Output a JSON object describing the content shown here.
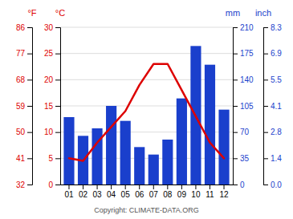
{
  "chart_data": {
    "type": "bar",
    "categories": [
      "01",
      "02",
      "03",
      "04",
      "05",
      "06",
      "07",
      "08",
      "09",
      "10",
      "11",
      "12"
    ],
    "series": [
      {
        "type": "bar",
        "color": "#1a3fcc",
        "axis": "y2",
        "values": [
          90,
          65,
          75,
          105,
          85,
          50,
          40,
          60,
          115,
          185,
          160,
          100
        ]
      },
      {
        "type": "line",
        "color": "#dd0000",
        "values": [
          5.0,
          4.5,
          8.0,
          11.0,
          14.0,
          19.0,
          23.0,
          23.0,
          18.0,
          13.0,
          8.0,
          5.0
        ]
      }
    ],
    "ylabel": "°C",
    "ylim": [
      0,
      30
    ],
    "yticks": [
      0,
      5,
      10,
      15,
      20,
      25,
      30
    ],
    "y_f_label": "°F",
    "y_f_ticks": [
      {
        "value": 0,
        "label": "32"
      },
      {
        "value": 5,
        "label": "41"
      },
      {
        "value": 10,
        "label": "50"
      },
      {
        "value": 15,
        "label": "59"
      },
      {
        "value": 20,
        "label": "68"
      },
      {
        "value": 25,
        "label": "77"
      },
      {
        "value": 30,
        "label": "86"
      }
    ],
    "y2label": "mm",
    "y2lim": [
      0,
      210
    ],
    "y2ticks": [
      0,
      35,
      70,
      105,
      140,
      175,
      210
    ],
    "y2_inch_label": "inch",
    "y2_inch_ticks": [
      {
        "value": 0,
        "label": "0.0"
      },
      {
        "value": 35,
        "label": "1.4"
      },
      {
        "value": 70,
        "label": "2.8"
      },
      {
        "value": 105,
        "label": "4.1"
      },
      {
        "value": 140,
        "label": "5.5"
      },
      {
        "value": 175,
        "label": "6.9"
      },
      {
        "value": 210,
        "label": "8.3"
      }
    ],
    "grid": true,
    "annotation": "Copyright: CLIMATE-DATA.ORG"
  }
}
